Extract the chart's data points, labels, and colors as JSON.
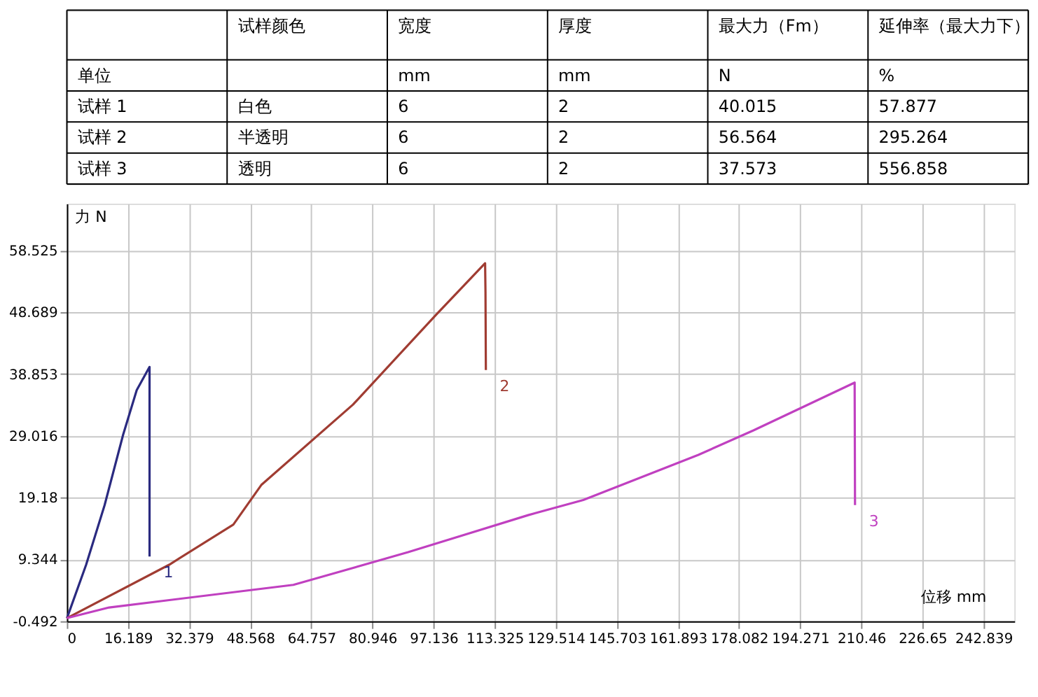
{
  "chart_data": [
    {
      "type": "other",
      "categories": [
        null,
        "试样颜色",
        "宽度",
        "厚度",
        "最大力（Fm）",
        "延伸率（最大力下）"
      ],
      "y_categories": [
        "单位",
        "试样 1",
        "试样 2",
        "试样 3"
      ],
      "annotations": [
        null,
        "mm",
        "mm",
        "N",
        "%",
        "白色",
        "6",
        "2",
        "40.015",
        "57.877",
        "半透明",
        "6",
        "2",
        "56.564",
        "295.264",
        "透明",
        "6",
        "2",
        "37.573",
        "556.858"
      ]
    },
    {
      "type": "line",
      "xlabel": "位移 mm",
      "ylabel": "力 N",
      "xlim": [
        0,
        251
      ],
      "ylim": [
        -0.492,
        66
      ],
      "xticks": [
        0,
        16.189,
        32.379,
        48.568,
        64.757,
        80.946,
        97.136,
        113.325,
        129.514,
        145.703,
        161.893,
        178.082,
        194.271,
        210.46,
        226.65,
        242.839
      ],
      "yticks": [
        -0.492,
        9.344,
        19.18,
        29.016,
        38.853,
        48.689,
        58.525
      ],
      "grid": true,
      "legend": false,
      "series": [
        {
          "name": "1",
          "color": "#2a2a80",
          "x": [
            0,
            0.2,
            5.1,
            10.0,
            14.9,
            18.5,
            21.9,
            21.9
          ],
          "values": [
            0,
            0.3,
            8.5,
            18.0,
            29.2,
            36.3,
            40.0,
            9.8
          ]
        },
        {
          "name": "2",
          "color": "#a03c32",
          "x": [
            0,
            27.1,
            44.1,
            51.5,
            75.8,
            97.8,
            110.8,
            110.9,
            111.0
          ],
          "values": [
            0,
            8.5,
            14.9,
            21.2,
            34.0,
            48.3,
            56.5,
            51.9,
            39.5
          ]
        },
        {
          "name": "3",
          "color": "#c040c0",
          "x": [
            0,
            11.2,
            60,
            90.4,
            122.2,
            136.8,
            167.3,
            181.9,
            208.7,
            208.8
          ],
          "values": [
            0,
            1.7,
            5.3,
            10.5,
            16.4,
            18.8,
            26.0,
            29.9,
            37.5,
            18.0
          ]
        }
      ]
    }
  ]
}
